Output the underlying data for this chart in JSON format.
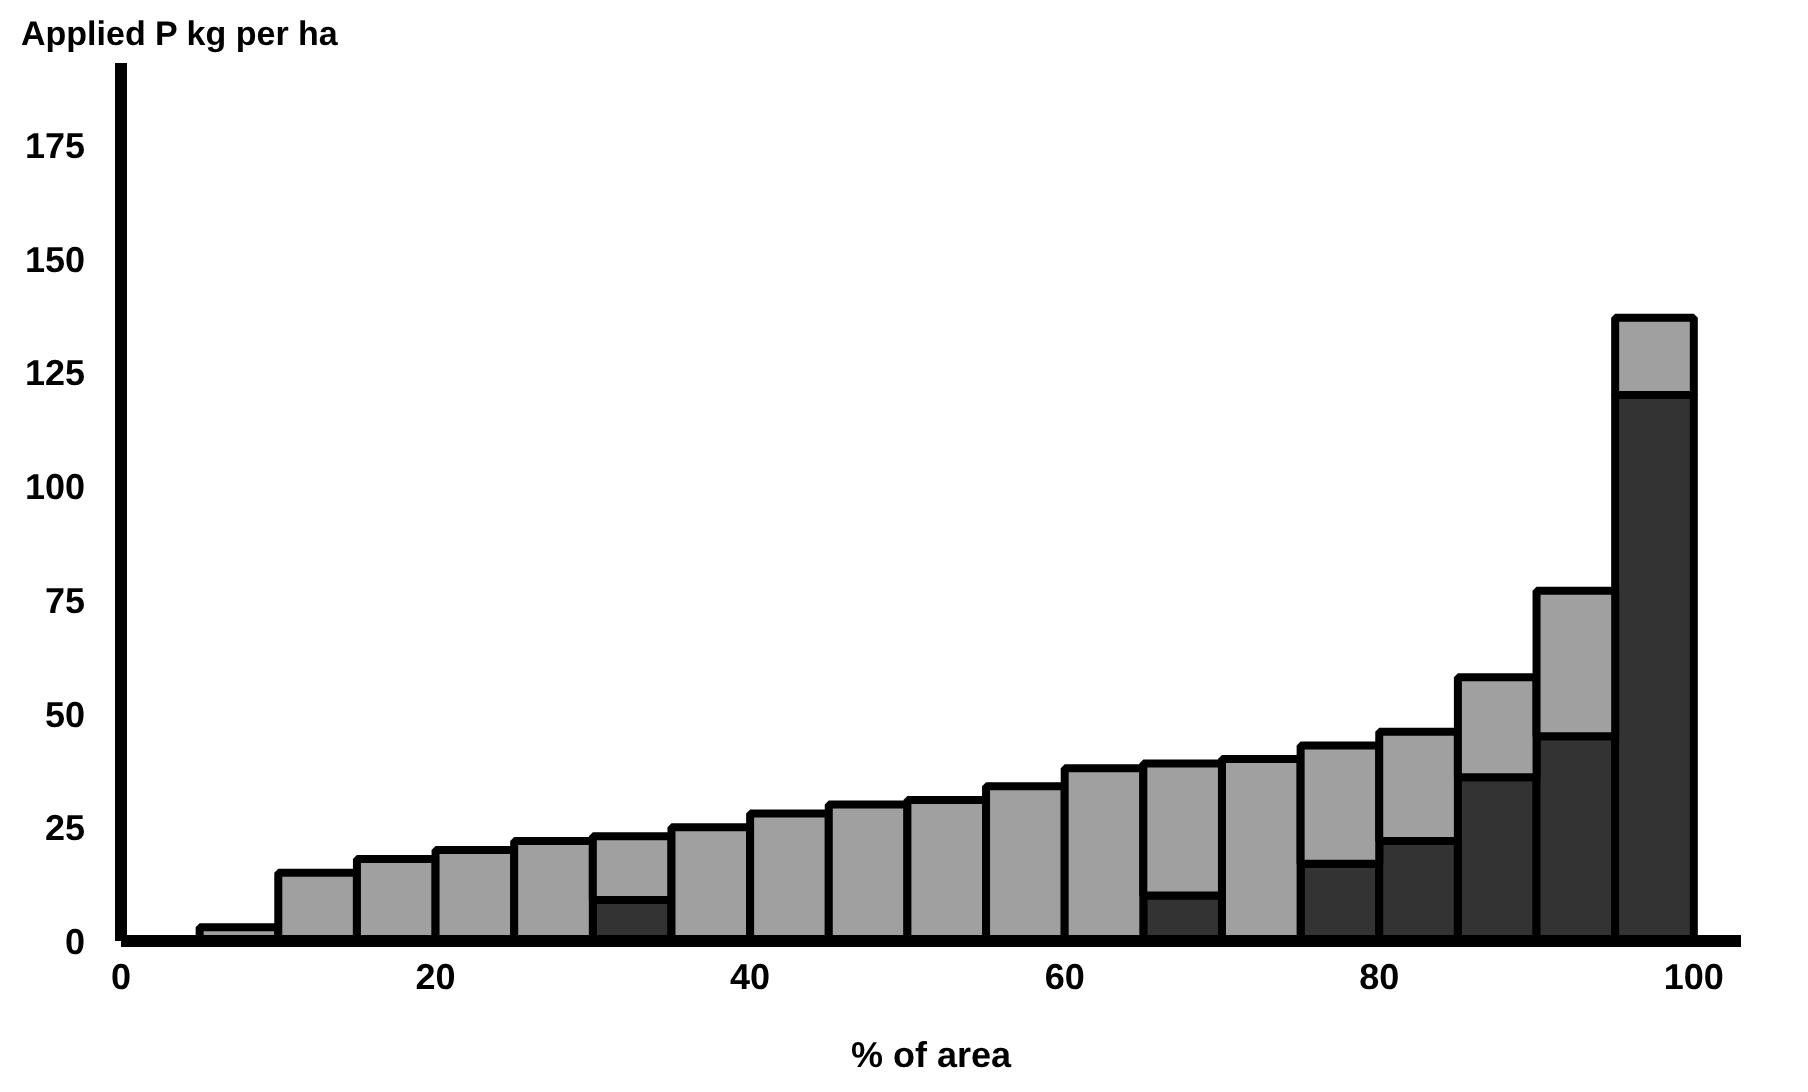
{
  "chart_data": {
    "type": "bar",
    "stacked": true,
    "xlabel": "% of area",
    "ylabel": "Applied P kg per ha",
    "x": [
      7.5,
      12.5,
      17.5,
      22.5,
      27.5,
      32.5,
      37.5,
      42.5,
      47.5,
      52.5,
      57.5,
      62.5,
      67.5,
      72.5,
      77.5,
      82.5,
      87.5,
      92.5,
      97.5
    ],
    "series": [
      {
        "color": "#333333",
        "values": [
          0,
          0,
          0,
          0,
          0,
          9,
          0,
          0,
          0,
          0,
          0,
          0,
          10,
          0,
          17,
          22,
          36,
          45,
          120
        ]
      },
      {
        "color": "#a0a0a0",
        "values": [
          3,
          15,
          18,
          20,
          22,
          14,
          25,
          28,
          30,
          31,
          34,
          38,
          29,
          40,
          26,
          24,
          22,
          32,
          17
        ]
      }
    ],
    "xlim": [
      0,
      103
    ],
    "ylim": [
      0,
      193
    ],
    "xticks": [
      0,
      20,
      40,
      60,
      80,
      100
    ],
    "yticks": [
      0,
      25,
      50,
      75,
      100,
      125,
      150,
      175
    ],
    "grid": false
  }
}
